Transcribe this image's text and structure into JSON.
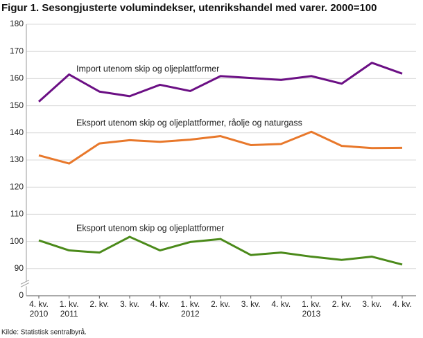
{
  "chart_data": {
    "type": "line",
    "title": "Figur 1. Sesongjusterte volumindekser, utenrikshandel med varer. 2000=100",
    "source": "Kilde: Statistisk sentralbyrå.",
    "categories": [
      "4. kv.\n2010",
      "1. kv.\n2011",
      "2. kv.",
      "3. kv.",
      "4. kv.",
      "1. kv.\n2012",
      "2. kv.",
      "3. kv.",
      "4. kv.",
      "1. kv.\n2013",
      "2. kv.",
      "3. kv.",
      "4. kv."
    ],
    "series": [
      {
        "name": "Import utenom skip og oljeplattformer",
        "color": "#6b0f84",
        "values": [
          151.5,
          161.5,
          155.2,
          153.5,
          157.7,
          155.4,
          160.9,
          160.2,
          159.5,
          160.9,
          158.1,
          165.8,
          161.8
        ]
      },
      {
        "name": "Eksport utenom skip og oljeplattformer, råolje og naturgass",
        "color": "#e8782b",
        "values": [
          131.7,
          128.7,
          136.1,
          137.3,
          136.7,
          137.5,
          138.8,
          135.5,
          135.9,
          140.4,
          135.2,
          134.4,
          134.5
        ]
      },
      {
        "name": "Eksport utenom skip og oljeplattformer",
        "color": "#4b8a1a",
        "values": [
          100.4,
          96.7,
          95.9,
          101.7,
          96.7,
          99.8,
          100.9,
          95.0,
          95.9,
          94.4,
          93.2,
          94.4,
          91.5
        ]
      }
    ],
    "ylim": [
      0,
      180
    ],
    "yticks": [
      0,
      90,
      100,
      110,
      120,
      130,
      140,
      150,
      160,
      170,
      180
    ],
    "axis_break": [
      0,
      90
    ],
    "grid": true
  }
}
